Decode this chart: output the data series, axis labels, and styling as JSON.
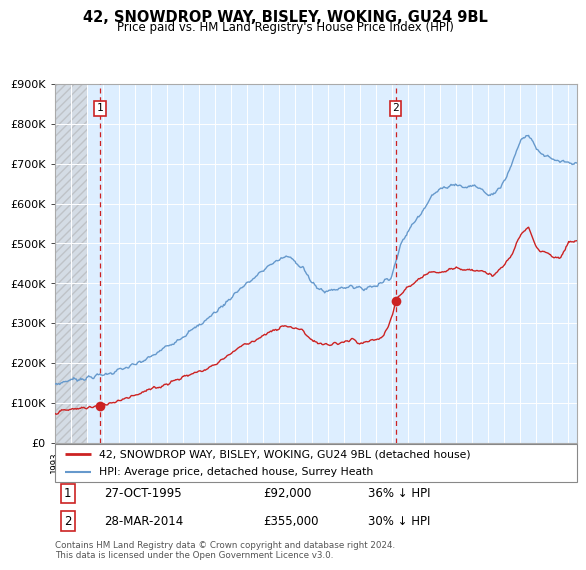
{
  "title": "42, SNOWDROP WAY, BISLEY, WOKING, GU24 9BL",
  "subtitle": "Price paid vs. HM Land Registry's House Price Index (HPI)",
  "legend_line1": "42, SNOWDROP WAY, BISLEY, WOKING, GU24 9BL (detached house)",
  "legend_line2": "HPI: Average price, detached house, Surrey Heath",
  "sale1_label": "1",
  "sale1_date": "27-OCT-1995",
  "sale1_price": "£92,000",
  "sale1_hpi": "36% ↓ HPI",
  "sale1_year": 1995.82,
  "sale1_value": 92000,
  "sale2_label": "2",
  "sale2_date": "28-MAR-2014",
  "sale2_price": "£355,000",
  "sale2_hpi": "30% ↓ HPI",
  "sale2_year": 2014.24,
  "sale2_value": 355000,
  "red_color": "#cc2222",
  "blue_color": "#6699cc",
  "chart_bg": "#ddeeff",
  "hatch_bg": "#cccccc",
  "ylim": [
    0,
    900000
  ],
  "yticks": [
    0,
    100000,
    200000,
    300000,
    400000,
    500000,
    600000,
    700000,
    800000,
    900000
  ],
  "xmin": 1993,
  "xmax": 2025.5,
  "footnote": "Contains HM Land Registry data © Crown copyright and database right 2024.\nThis data is licensed under the Open Government Licence v3.0."
}
